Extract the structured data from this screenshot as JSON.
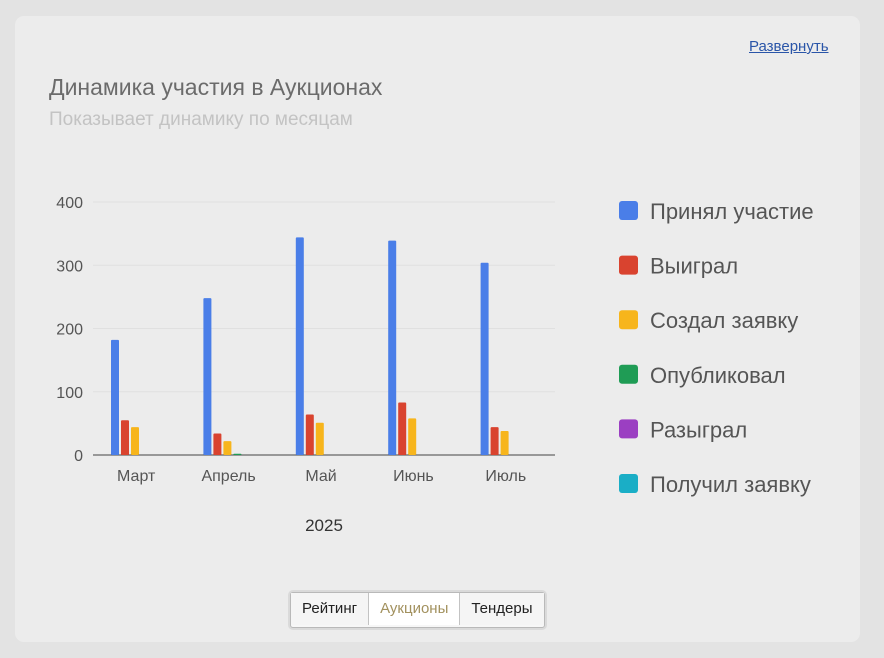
{
  "expand_link": "Развернуть",
  "chart_data": {
    "type": "bar",
    "title": "Динамика участия в Аукционах",
    "subtitle": "Показывает динамику по месяцам",
    "xlabel": "2025",
    "ylabel": "",
    "categories": [
      "Март",
      "Апрель",
      "Май",
      "Июнь",
      "Июль"
    ],
    "ylim": [
      0,
      400
    ],
    "yticks": [
      0,
      100,
      200,
      300,
      400
    ],
    "grid": true,
    "legend_position": "right",
    "series": [
      {
        "name": "Принял участие",
        "color": "#4a7ee8",
        "values": [
          182,
          248,
          344,
          339,
          304
        ]
      },
      {
        "name": "Выиграл",
        "color": "#d9432f",
        "values": [
          55,
          34,
          64,
          83,
          44
        ]
      },
      {
        "name": "Создал заявку",
        "color": "#f7b51c",
        "values": [
          44,
          22,
          51,
          58,
          38
        ]
      },
      {
        "name": "Опубликовал",
        "color": "#1f9c55",
        "values": [
          0,
          2,
          0,
          0,
          0
        ]
      },
      {
        "name": "Разыграл",
        "color": "#9b3fc2",
        "values": [
          0,
          0,
          0,
          0,
          0
        ]
      },
      {
        "name": "Получил заявку",
        "color": "#1aaec6",
        "values": [
          0,
          0,
          0,
          0,
          0
        ]
      }
    ]
  },
  "tabs": [
    {
      "label": "Рейтинг",
      "active": false
    },
    {
      "label": "Аукционы",
      "active": true
    },
    {
      "label": "Тендеры",
      "active": false
    }
  ]
}
